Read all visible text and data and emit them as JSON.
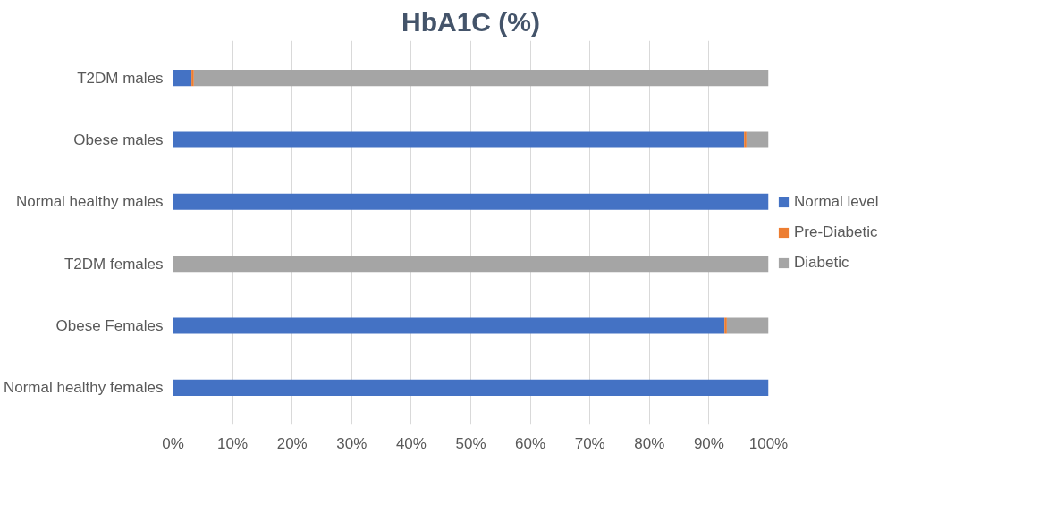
{
  "chart_data": {
    "type": "bar",
    "orientation": "horizontal",
    "stacked": true,
    "title": "HbA1C (%)",
    "categories": [
      "T2DM males",
      "Obese males",
      "Normal healthy males",
      "T2DM females",
      "Obese Females",
      "Normal healthy females"
    ],
    "series": [
      {
        "name": "Normal level",
        "color": "#4472c4",
        "values": [
          3.1,
          95.9,
          100,
          0,
          92.6,
          100
        ]
      },
      {
        "name": "Pre-Diabetic",
        "color": "#ed7d31",
        "values": [
          0.4,
          0.4,
          0,
          0,
          0.4,
          0
        ]
      },
      {
        "name": "Diabetic",
        "color": "#a5a5a5",
        "values": [
          96.5,
          3.7,
          0,
          100,
          7.0,
          0
        ]
      }
    ],
    "xlim": [
      0,
      100
    ],
    "xticks": [
      {
        "value": 0,
        "label": "0%"
      },
      {
        "value": 10,
        "label": "10%"
      },
      {
        "value": 20,
        "label": "20%"
      },
      {
        "value": 30,
        "label": "30%"
      },
      {
        "value": 40,
        "label": "40%"
      },
      {
        "value": 50,
        "label": "50%"
      },
      {
        "value": 60,
        "label": "60%"
      },
      {
        "value": 70,
        "label": "70%"
      },
      {
        "value": 80,
        "label": "80%"
      },
      {
        "value": 90,
        "label": "90%"
      },
      {
        "value": 100,
        "label": "100%"
      }
    ],
    "grid": "x",
    "legend": "right"
  }
}
